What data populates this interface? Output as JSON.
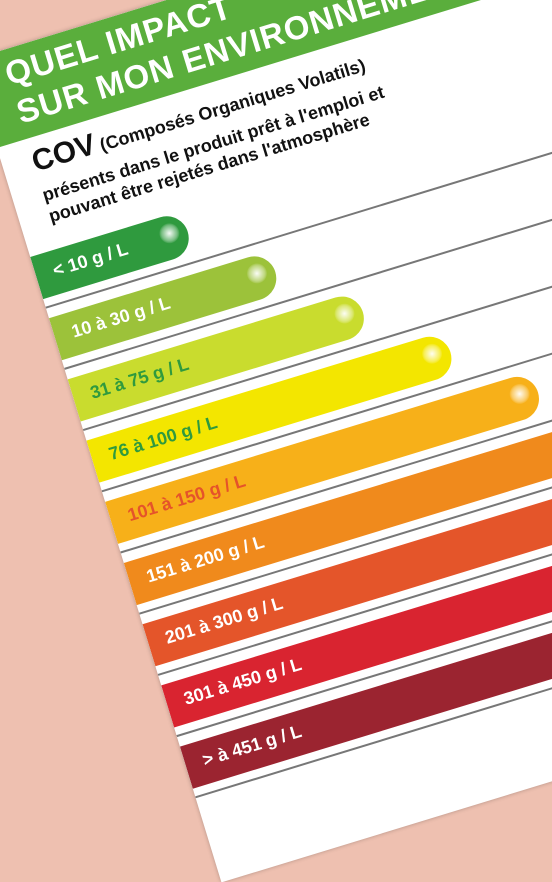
{
  "header": {
    "line1": "QUEL IMPACT",
    "line2": "SUR MON ENVIRONNEMENT ?"
  },
  "cov": {
    "title": "COV",
    "subtitle": "(Composés Organiques Volatils)",
    "desc1": "présents dans le produit prêt à l'emploi et",
    "desc2": "pouvant être rejetés dans l'atmosphère"
  },
  "colors": {
    "header": "#5aae3c",
    "arrow": "#4faa3a"
  },
  "levels": [
    {
      "label": "< 10 g / L",
      "bar": "#2f9a3e",
      "text": "#ffffff",
      "fill": 0.22
    },
    {
      "label": "10 à 30 g / L",
      "bar": "#9cc23a",
      "text": "#ffffff",
      "fill": 0.32
    },
    {
      "label": "31 à 75 g / L",
      "bar": "#c9dc2e",
      "text": "#2f9a3e",
      "fill": 0.42
    },
    {
      "label": "76 à 100 g / L",
      "bar": "#f3e600",
      "text": "#2f9a3e",
      "fill": 0.52
    },
    {
      "label": "101 à 150 g / L",
      "bar": "#f7b019",
      "text": "#e5532a",
      "fill": 0.62
    },
    {
      "label": "151 à 200 g / L",
      "bar": "#f08a1c",
      "text": "#ffffff",
      "fill": 0.72
    },
    {
      "label": "201 à 300 g / L",
      "bar": "#e4552a",
      "text": "#ffffff",
      "fill": 1.0
    },
    {
      "label": "301 à 450 g / L",
      "bar": "#d92430",
      "text": "#ffffff",
      "fill": 1.0
    },
    {
      "label": "> à 451 g / L",
      "bar": "#9b2430",
      "text": "#ffffff",
      "fill": 1.0
    }
  ]
}
